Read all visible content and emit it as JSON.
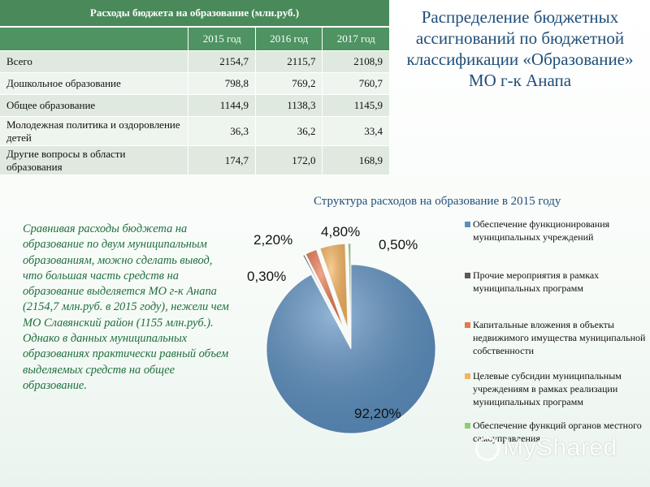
{
  "table": {
    "header": "Расходы бюджета на образование (млн.руб.)",
    "years": [
      "2015 год",
      "2016 год",
      "2017 год"
    ],
    "rows": [
      {
        "label": "Всего",
        "values": [
          "2154,7",
          "2115,7",
          "2108,9"
        ]
      },
      {
        "label": "Дошкольное образование",
        "values": [
          "798,8",
          "769,2",
          "760,7"
        ]
      },
      {
        "label": "Общее образование",
        "values": [
          "1144,9",
          "1138,3",
          "1145,9"
        ]
      },
      {
        "label": "Молодежная политика и оздоровление детей",
        "values": [
          "36,3",
          "36,2",
          "33,4"
        ]
      },
      {
        "label": "Другие вопросы в области образования",
        "values": [
          "174,7",
          "172,0",
          "168,9"
        ]
      }
    ]
  },
  "title_lines": [
    "Распределение бюджетных",
    "ассигнований по бюджетной",
    "классификации «Образование»",
    "МО г-к Анапа"
  ],
  "description": "Сравнивая расходы бюджета на образование по двум муниципальным образованиям, можно сделать вывод, что большая часть средств на образование выделяется МО г-к Анапа (2154,7 млн.руб. в 2015 году), нежели чем МО Славянский район (1155 млн.руб.). Однако в данных муниципальных образованиях практически равный объем выделяемых средств на общее образование.",
  "watermark": "MyShared",
  "chart_data": {
    "type": "pie",
    "title": "Структура расходов на образование в 2015 году",
    "legend_position": "right",
    "slices": [
      {
        "name": "Обеспечение функционирования муниципальных учреждений",
        "value": 92.2,
        "label": "92,20%",
        "color": "#5b8fc0"
      },
      {
        "name": "Прочие мероприятия в рамках муниципальных программ",
        "value": 0.3,
        "label": "0,30%",
        "color": "#5a5a5a"
      },
      {
        "name": "Капитальные вложения в объекты недвижимого имущества муниципальной собственности",
        "value": 2.2,
        "label": "2,20%",
        "color": "#e8774f"
      },
      {
        "name": "Целевые субсидии муниципальным учреждениям в рамках реализации муниципальных программ",
        "value": 4.8,
        "label": "4,80%",
        "color": "#f5b35c"
      },
      {
        "name": "Обеспечение функций органов местного самоуправления",
        "value": 0.5,
        "label": "0,50%",
        "color": "#8ccf6e"
      }
    ]
  }
}
